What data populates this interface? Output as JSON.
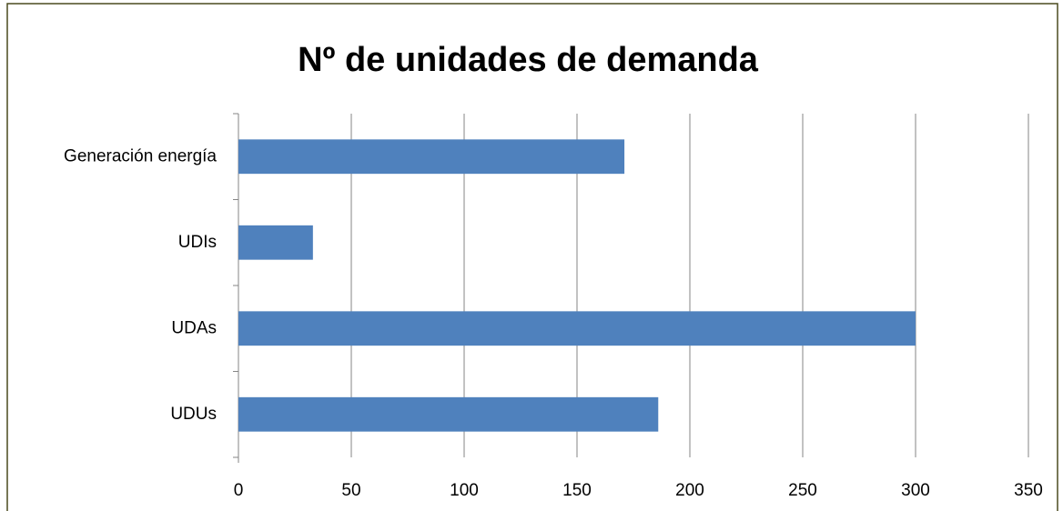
{
  "chart_data": {
    "type": "bar",
    "title": "Nº de unidades de demanda",
    "categories": [
      "Generación energía",
      "UDIs",
      "UDAs",
      "UDUs"
    ],
    "values": [
      171,
      33,
      300,
      186
    ],
    "color": "#4f81bd",
    "xlim": [
      0,
      350
    ],
    "xticks": [
      0,
      50,
      100,
      150,
      200,
      250,
      300,
      350
    ],
    "grid": true
  }
}
